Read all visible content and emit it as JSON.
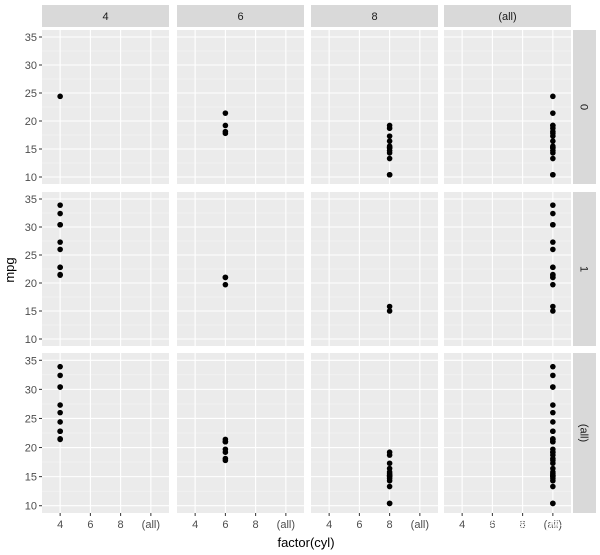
{
  "chart_data": {
    "type": "scatter",
    "xlabel": "factor(cyl)",
    "ylabel": "mpg",
    "x_categories": [
      "4",
      "6",
      "8",
      "(all)"
    ],
    "y_ticks": [
      10,
      15,
      20,
      25,
      30,
      35
    ],
    "ylim": [
      10,
      35
    ],
    "grid": true,
    "col_facets": [
      "4",
      "6",
      "8",
      "(all)"
    ],
    "row_facets": [
      "0",
      "1",
      "(all)"
    ],
    "panels": [
      {
        "row": "0",
        "col": "4",
        "points": [
          {
            "x": "4",
            "y": 24.4
          }
        ]
      },
      {
        "row": "0",
        "col": "6",
        "points": [
          {
            "x": "6",
            "y": 21.4
          },
          {
            "x": "6",
            "y": 18.1
          },
          {
            "x": "6",
            "y": 19.2
          },
          {
            "x": "6",
            "y": 17.8
          }
        ]
      },
      {
        "row": "0",
        "col": "8",
        "points": [
          {
            "x": "8",
            "y": 18.7
          },
          {
            "x": "8",
            "y": 14.3
          },
          {
            "x": "8",
            "y": 16.4
          },
          {
            "x": "8",
            "y": 17.3
          },
          {
            "x": "8",
            "y": 15.2
          },
          {
            "x": "8",
            "y": 10.4
          },
          {
            "x": "8",
            "y": 10.4
          },
          {
            "x": "8",
            "y": 14.7
          },
          {
            "x": "8",
            "y": 15.5
          },
          {
            "x": "8",
            "y": 15.2
          },
          {
            "x": "8",
            "y": 13.3
          },
          {
            "x": "8",
            "y": 19.2
          }
        ]
      },
      {
        "row": "0",
        "col": "(all)",
        "points": [
          {
            "x": "(all)",
            "y": 24.4
          },
          {
            "x": "(all)",
            "y": 21.4
          },
          {
            "x": "(all)",
            "y": 18.1
          },
          {
            "x": "(all)",
            "y": 19.2
          },
          {
            "x": "(all)",
            "y": 17.8
          },
          {
            "x": "(all)",
            "y": 18.7
          },
          {
            "x": "(all)",
            "y": 14.3
          },
          {
            "x": "(all)",
            "y": 16.4
          },
          {
            "x": "(all)",
            "y": 17.3
          },
          {
            "x": "(all)",
            "y": 15.2
          },
          {
            "x": "(all)",
            "y": 10.4
          },
          {
            "x": "(all)",
            "y": 10.4
          },
          {
            "x": "(all)",
            "y": 14.7
          },
          {
            "x": "(all)",
            "y": 15.5
          },
          {
            "x": "(all)",
            "y": 15.2
          },
          {
            "x": "(all)",
            "y": 13.3
          },
          {
            "x": "(all)",
            "y": 19.2
          }
        ]
      },
      {
        "row": "1",
        "col": "4",
        "points": [
          {
            "x": "4",
            "y": 22.8
          },
          {
            "x": "4",
            "y": 32.4
          },
          {
            "x": "4",
            "y": 30.4
          },
          {
            "x": "4",
            "y": 33.9
          },
          {
            "x": "4",
            "y": 27.3
          },
          {
            "x": "4",
            "y": 26.0
          },
          {
            "x": "4",
            "y": 30.4
          },
          {
            "x": "4",
            "y": 21.4
          },
          {
            "x": "4",
            "y": 22.8
          },
          {
            "x": "4",
            "y": 21.5
          }
        ]
      },
      {
        "row": "1",
        "col": "6",
        "points": [
          {
            "x": "6",
            "y": 21.0
          },
          {
            "x": "6",
            "y": 21.0
          },
          {
            "x": "6",
            "y": 19.7
          }
        ]
      },
      {
        "row": "1",
        "col": "8",
        "points": [
          {
            "x": "8",
            "y": 15.8
          },
          {
            "x": "8",
            "y": 15.0
          }
        ]
      },
      {
        "row": "1",
        "col": "(all)",
        "points": [
          {
            "x": "(all)",
            "y": 22.8
          },
          {
            "x": "(all)",
            "y": 32.4
          },
          {
            "x": "(all)",
            "y": 30.4
          },
          {
            "x": "(all)",
            "y": 33.9
          },
          {
            "x": "(all)",
            "y": 27.3
          },
          {
            "x": "(all)",
            "y": 26.0
          },
          {
            "x": "(all)",
            "y": 30.4
          },
          {
            "x": "(all)",
            "y": 21.4
          },
          {
            "x": "(all)",
            "y": 22.8
          },
          {
            "x": "(all)",
            "y": 21.5
          },
          {
            "x": "(all)",
            "y": 21.0
          },
          {
            "x": "(all)",
            "y": 21.0
          },
          {
            "x": "(all)",
            "y": 19.7
          },
          {
            "x": "(all)",
            "y": 15.8
          },
          {
            "x": "(all)",
            "y": 15.0
          }
        ]
      },
      {
        "row": "(all)",
        "col": "4",
        "points": [
          {
            "x": "4",
            "y": 22.8
          },
          {
            "x": "4",
            "y": 24.4
          },
          {
            "x": "4",
            "y": 22.8
          },
          {
            "x": "4",
            "y": 32.4
          },
          {
            "x": "4",
            "y": 30.4
          },
          {
            "x": "4",
            "y": 33.9
          },
          {
            "x": "4",
            "y": 21.5
          },
          {
            "x": "4",
            "y": 27.3
          },
          {
            "x": "4",
            "y": 26.0
          },
          {
            "x": "4",
            "y": 30.4
          },
          {
            "x": "4",
            "y": 21.4
          }
        ]
      },
      {
        "row": "(all)",
        "col": "6",
        "points": [
          {
            "x": "6",
            "y": 21.0
          },
          {
            "x": "6",
            "y": 21.0
          },
          {
            "x": "6",
            "y": 21.4
          },
          {
            "x": "6",
            "y": 18.1
          },
          {
            "x": "6",
            "y": 19.2
          },
          {
            "x": "6",
            "y": 17.8
          },
          {
            "x": "6",
            "y": 19.7
          }
        ]
      },
      {
        "row": "(all)",
        "col": "8",
        "points": [
          {
            "x": "8",
            "y": 18.7
          },
          {
            "x": "8",
            "y": 14.3
          },
          {
            "x": "8",
            "y": 16.4
          },
          {
            "x": "8",
            "y": 17.3
          },
          {
            "x": "8",
            "y": 15.2
          },
          {
            "x": "8",
            "y": 10.4
          },
          {
            "x": "8",
            "y": 10.4
          },
          {
            "x": "8",
            "y": 14.7
          },
          {
            "x": "8",
            "y": 15.5
          },
          {
            "x": "8",
            "y": 15.2
          },
          {
            "x": "8",
            "y": 13.3
          },
          {
            "x": "8",
            "y": 19.2
          },
          {
            "x": "8",
            "y": 15.8
          },
          {
            "x": "8",
            "y": 15.0
          }
        ]
      },
      {
        "row": "(all)",
        "col": "(all)",
        "points": [
          {
            "x": "(all)",
            "y": 21.0
          },
          {
            "x": "(all)",
            "y": 21.0
          },
          {
            "x": "(all)",
            "y": 22.8
          },
          {
            "x": "(all)",
            "y": 21.4
          },
          {
            "x": "(all)",
            "y": 18.7
          },
          {
            "x": "(all)",
            "y": 18.1
          },
          {
            "x": "(all)",
            "y": 14.3
          },
          {
            "x": "(all)",
            "y": 24.4
          },
          {
            "x": "(all)",
            "y": 22.8
          },
          {
            "x": "(all)",
            "y": 19.2
          },
          {
            "x": "(all)",
            "y": 17.8
          },
          {
            "x": "(all)",
            "y": 16.4
          },
          {
            "x": "(all)",
            "y": 17.3
          },
          {
            "x": "(all)",
            "y": 15.2
          },
          {
            "x": "(all)",
            "y": 10.4
          },
          {
            "x": "(all)",
            "y": 10.4
          },
          {
            "x": "(all)",
            "y": 14.7
          },
          {
            "x": "(all)",
            "y": 32.4
          },
          {
            "x": "(all)",
            "y": 30.4
          },
          {
            "x": "(all)",
            "y": 33.9
          },
          {
            "x": "(all)",
            "y": 21.5
          },
          {
            "x": "(all)",
            "y": 15.5
          },
          {
            "x": "(all)",
            "y": 15.2
          },
          {
            "x": "(all)",
            "y": 13.3
          },
          {
            "x": "(all)",
            "y": 19.2
          },
          {
            "x": "(all)",
            "y": 27.3
          },
          {
            "x": "(all)",
            "y": 26.0
          },
          {
            "x": "(all)",
            "y": 30.4
          },
          {
            "x": "(all)",
            "y": 15.8
          },
          {
            "x": "(all)",
            "y": 19.7
          },
          {
            "x": "(all)",
            "y": 15.0
          },
          {
            "x": "(all)",
            "y": 21.4
          }
        ]
      }
    ]
  },
  "watermark": "知乎 @重庆淋铭"
}
